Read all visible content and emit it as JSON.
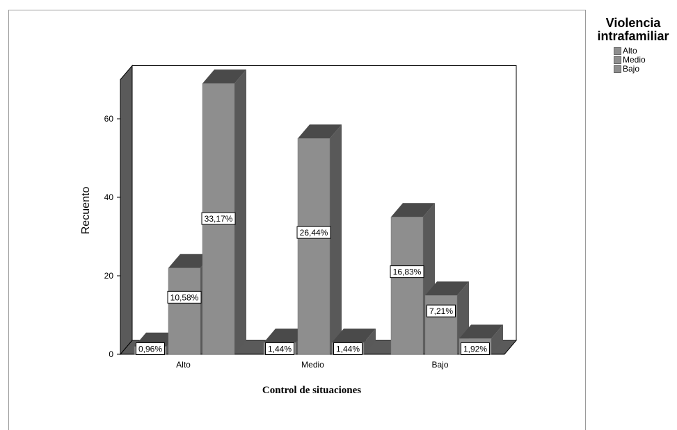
{
  "chart_data": {
    "type": "bar",
    "title": "",
    "xlabel": "Control de situaciones",
    "ylabel": "Recuento",
    "categories": [
      "Alto",
      "Medio",
      "Bajo"
    ],
    "ylim": [
      0,
      70
    ],
    "yticks": [
      0,
      20,
      40,
      60
    ],
    "grid": false,
    "legend_title": "Violencia intrafamiliar",
    "legend_position": "top-right",
    "series": [
      {
        "name": "Alto",
        "values": [
          2,
          3,
          35
        ],
        "labels": [
          "0,96%",
          "1,44%",
          "16,83%"
        ]
      },
      {
        "name": "Medio",
        "values": [
          22,
          55,
          15
        ],
        "labels": [
          "10,58%",
          "26,44%",
          "7,21%"
        ]
      },
      {
        "name": "Bajo",
        "values": [
          69,
          3,
          4
        ],
        "labels": [
          "33,17%",
          "1,44%",
          "1,92%"
        ]
      }
    ],
    "colors": {
      "front": "#8e8e8e",
      "side": "#595959",
      "top": "#4a4a4a",
      "wall": "#5a5a5a"
    }
  }
}
